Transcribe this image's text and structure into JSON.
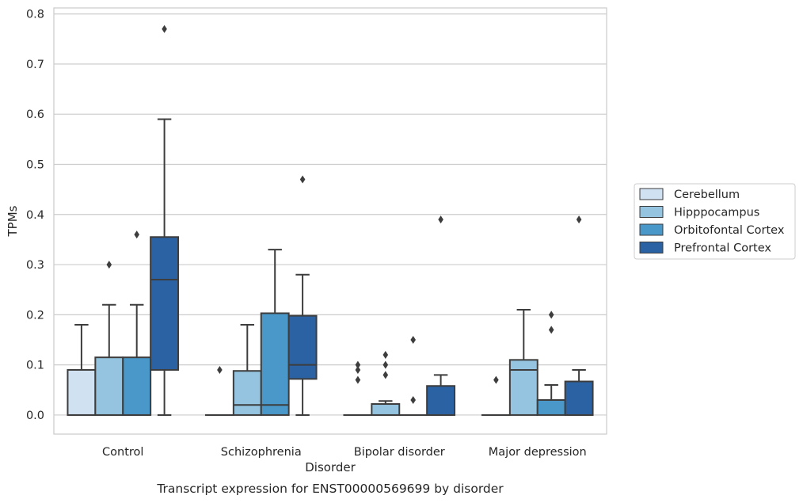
{
  "chart_data": {
    "type": "boxplot",
    "title": "Transcript expression for ENST00000569699 by disorder",
    "xlabel": "Disorder",
    "ylabel": "TPMs",
    "ylim": [
      -0.038,
      0.812
    ],
    "yticks": [
      0.0,
      0.1,
      0.2,
      0.3,
      0.4,
      0.5,
      0.6,
      0.7,
      0.8
    ],
    "ytick_labels": [
      "0.0",
      "0.1",
      "0.2",
      "0.3",
      "0.4",
      "0.5",
      "0.6",
      "0.7",
      "0.8"
    ],
    "grid": true,
    "legend_position": "right",
    "categories": [
      "Control",
      "Schizophrenia",
      "Bipolar disorder",
      "Major depression"
    ],
    "series": [
      {
        "name": "Cerebellum",
        "color": "#d0e1f2",
        "boxes": [
          {
            "q1": 0.0,
            "median": 0.0,
            "q3": 0.09,
            "whisker_low": 0.0,
            "whisker_high": 0.18,
            "outliers": []
          },
          {
            "q1": 0.0,
            "median": 0.0,
            "q3": 0.0,
            "whisker_low": 0.0,
            "whisker_high": 0.0,
            "outliers": [
              0.09
            ]
          },
          {
            "q1": 0.0,
            "median": 0.0,
            "q3": 0.0,
            "whisker_low": 0.0,
            "whisker_high": 0.0,
            "outliers": [
              0.07,
              0.09,
              0.1
            ]
          },
          {
            "q1": 0.0,
            "median": 0.0,
            "q3": 0.0,
            "whisker_low": 0.0,
            "whisker_high": 0.0,
            "outliers": [
              0.07
            ]
          }
        ]
      },
      {
        "name": "Hipppocampus",
        "color": "#94c4df",
        "boxes": [
          {
            "q1": 0.0,
            "median": 0.0,
            "q3": 0.115,
            "whisker_low": 0.0,
            "whisker_high": 0.22,
            "outliers": [
              0.3
            ]
          },
          {
            "q1": 0.0,
            "median": 0.02,
            "q3": 0.088,
            "whisker_low": 0.0,
            "whisker_high": 0.18,
            "outliers": []
          },
          {
            "q1": 0.0,
            "median": 0.0,
            "q3": 0.022,
            "whisker_low": 0.0,
            "whisker_high": 0.028,
            "outliers": [
              0.08,
              0.1,
              0.12
            ]
          },
          {
            "q1": 0.0,
            "median": 0.09,
            "q3": 0.11,
            "whisker_low": 0.0,
            "whisker_high": 0.21,
            "outliers": []
          }
        ]
      },
      {
        "name": "Orbitofontal Cortex",
        "color": "#4a98c9",
        "boxes": [
          {
            "q1": 0.0,
            "median": 0.0,
            "q3": 0.115,
            "whisker_low": 0.0,
            "whisker_high": 0.22,
            "outliers": [
              0.36
            ]
          },
          {
            "q1": 0.0,
            "median": 0.02,
            "q3": 0.203,
            "whisker_low": 0.0,
            "whisker_high": 0.33,
            "outliers": []
          },
          {
            "q1": 0.0,
            "median": 0.0,
            "q3": 0.0,
            "whisker_low": 0.0,
            "whisker_high": 0.0,
            "outliers": [
              0.03,
              0.15
            ]
          },
          {
            "q1": 0.0,
            "median": 0.03,
            "q3": 0.03,
            "whisker_low": 0.0,
            "whisker_high": 0.06,
            "outliers": [
              0.17,
              0.2
            ]
          }
        ]
      },
      {
        "name": "Prefrontal Cortex",
        "color": "#2b62a4",
        "boxes": [
          {
            "q1": 0.09,
            "median": 0.27,
            "q3": 0.355,
            "whisker_low": 0.0,
            "whisker_high": 0.59,
            "outliers": [
              0.77
            ]
          },
          {
            "q1": 0.072,
            "median": 0.1,
            "q3": 0.198,
            "whisker_low": 0.0,
            "whisker_high": 0.28,
            "outliers": [
              0.47
            ]
          },
          {
            "q1": 0.0,
            "median": 0.0,
            "q3": 0.058,
            "whisker_low": 0.0,
            "whisker_high": 0.08,
            "outliers": [
              0.39
            ]
          },
          {
            "q1": 0.0,
            "median": 0.0,
            "q3": 0.067,
            "whisker_low": 0.0,
            "whisker_high": 0.09,
            "outliers": [
              0.39
            ]
          }
        ]
      }
    ]
  }
}
